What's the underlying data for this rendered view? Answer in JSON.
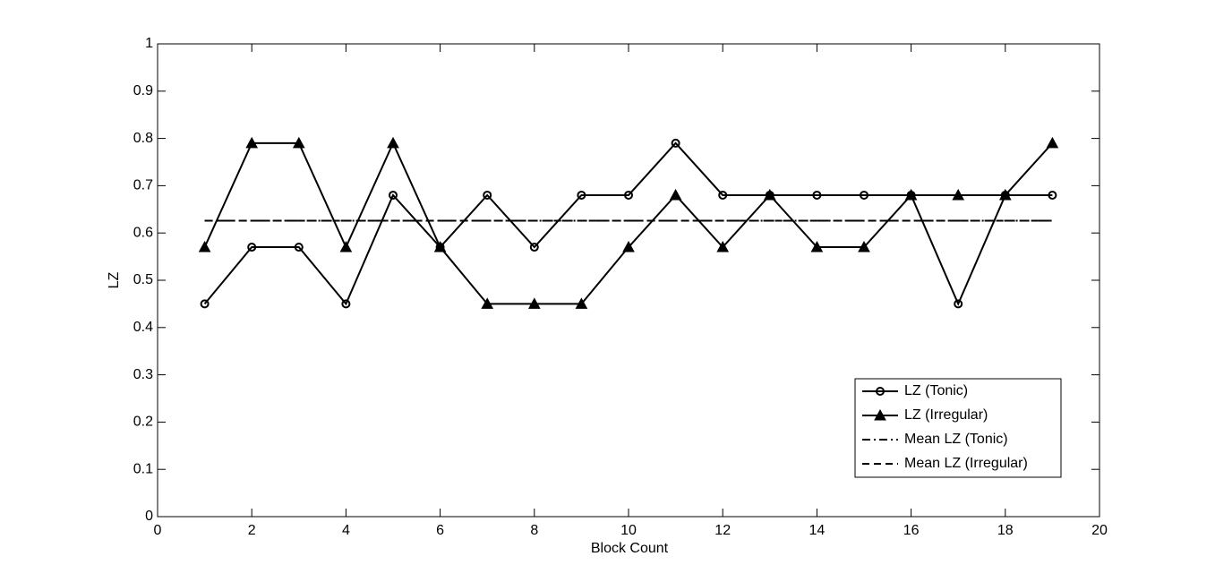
{
  "chart_data": {
    "type": "line",
    "xlabel": "Block Count",
    "ylabel": "LZ",
    "x": [
      1,
      2,
      3,
      4,
      5,
      6,
      7,
      8,
      9,
      10,
      11,
      12,
      13,
      14,
      15,
      16,
      17,
      18,
      19
    ],
    "series": [
      {
        "name": "LZ (Tonic)",
        "color": "#000000",
        "style": "solid",
        "marker": "circle",
        "values": [
          0.45,
          0.57,
          0.57,
          0.45,
          0.68,
          0.57,
          0.68,
          0.57,
          0.68,
          0.68,
          0.79,
          0.68,
          0.68,
          0.68,
          0.68,
          0.68,
          0.45,
          0.68,
          0.68
        ]
      },
      {
        "name": "LZ (Irregular)",
        "color": "#000000",
        "style": "solid",
        "marker": "triangle",
        "values": [
          0.57,
          0.79,
          0.79,
          0.57,
          0.79,
          0.57,
          0.45,
          0.45,
          0.45,
          0.57,
          0.68,
          0.57,
          0.68,
          0.57,
          0.57,
          0.68,
          0.68,
          0.68,
          0.79
        ]
      },
      {
        "name": "Mean LZ (Tonic)",
        "color": "#000000",
        "style": "dashdot",
        "marker": "none",
        "values": [
          0.626,
          0.626,
          0.626,
          0.626,
          0.626,
          0.626,
          0.626,
          0.626,
          0.626,
          0.626,
          0.626,
          0.626,
          0.626,
          0.626,
          0.626,
          0.626,
          0.626,
          0.626,
          0.626
        ]
      },
      {
        "name": "Mean LZ (Irregular)",
        "color": "#000000",
        "style": "dashed",
        "marker": "none",
        "values": [
          0.626,
          0.626,
          0.626,
          0.626,
          0.626,
          0.626,
          0.626,
          0.626,
          0.626,
          0.626,
          0.626,
          0.626,
          0.626,
          0.626,
          0.626,
          0.626,
          0.626,
          0.626,
          0.626
        ]
      }
    ],
    "xlim": [
      0,
      20
    ],
    "xticks": [
      0,
      2,
      4,
      6,
      8,
      10,
      12,
      14,
      16,
      18,
      20
    ],
    "ylim": [
      0,
      1
    ],
    "yticks": [
      0,
      0.1,
      0.2,
      0.3,
      0.4,
      0.5,
      0.6,
      0.7,
      0.8,
      0.9,
      1
    ],
    "grid": false,
    "legend": "lower right"
  }
}
